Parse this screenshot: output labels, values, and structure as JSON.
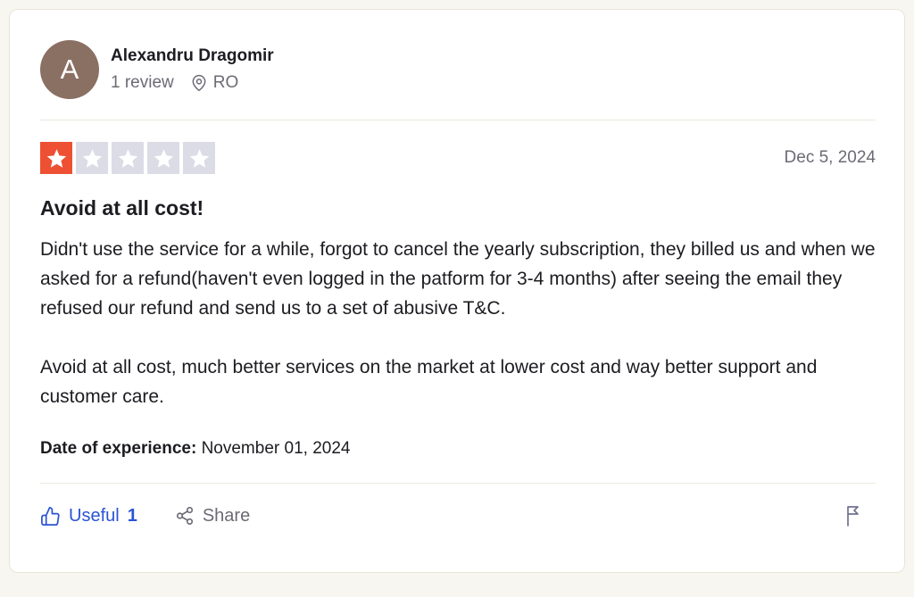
{
  "card": {
    "author": {
      "initial": "A",
      "name": "Alexandru Dragomir",
      "review_count": "1 review",
      "location": "RO"
    },
    "rating": {
      "stars_filled": 1,
      "stars_total": 5,
      "date": "Dec 5, 2024"
    },
    "review": {
      "title": "Avoid at all cost!",
      "paragraphs": [
        "Didn't use the service for a while, forgot to cancel the yearly subscription, they billed us and when we asked for a refund(haven't even logged in the patform for 3-4 months) after seeing the email they refused our refund and send us to a set of abusive T&C.",
        "Avoid at all cost, much better services on the market at lower cost and way better support and customer care."
      ],
      "experience_label": "Date of experience:",
      "experience_value": "November 01, 2024"
    },
    "footer": {
      "useful_label": "Useful",
      "useful_count": "1",
      "share_label": "Share"
    },
    "icons": {
      "location": "location-pin-icon",
      "useful": "thumbs-up-icon",
      "share": "share-nodes-icon",
      "report": "flag-icon",
      "star": "star-icon"
    },
    "colors": {
      "star_active": "#ee5033",
      "star_inactive": "#dcdce6",
      "accent_blue": "#2b54d4",
      "avatar_bg": "#8a6f63",
      "text_dark": "#1c1c21",
      "text_gray": "#6b6b74",
      "page_bg": "#f8f6f0",
      "flag_gray": "#717192"
    }
  }
}
